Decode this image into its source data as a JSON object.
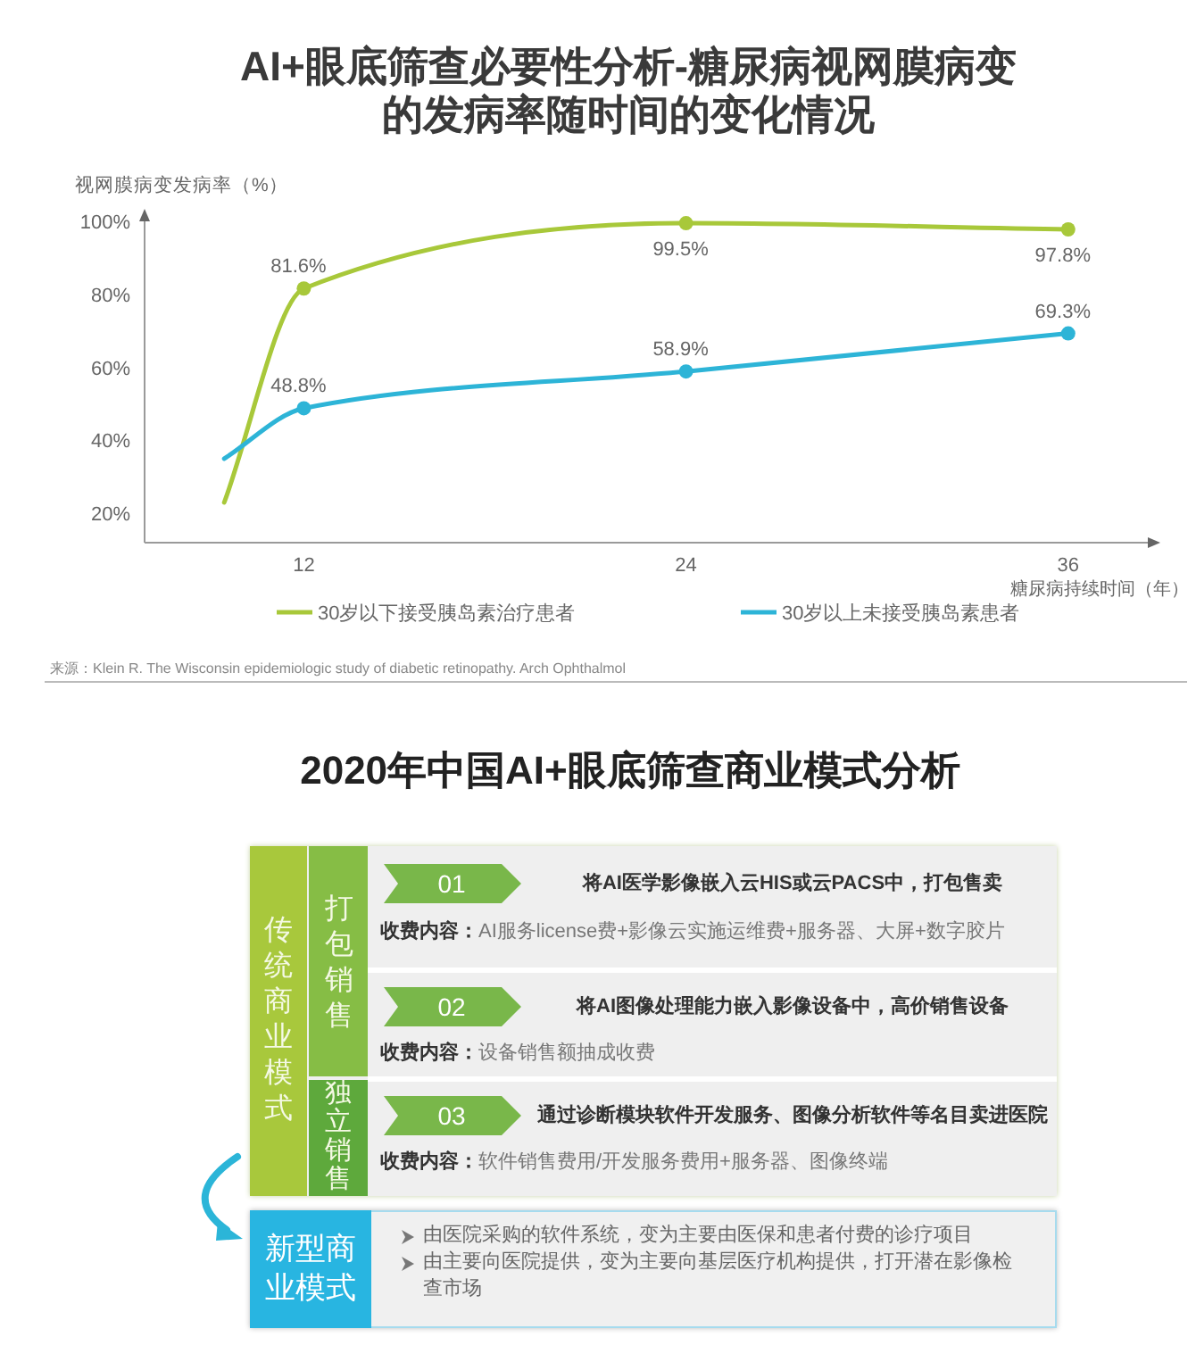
{
  "chart_data": [
    {
      "type": "line",
      "title": "AI+眼底筛查必要性分析-糖尿病视网膜病变的发病率随时间的变化情况",
      "xlabel": "糖尿病持续时间（年）",
      "ylabel": "视网膜病变发病率（%）",
      "xlim": [
        7,
        38.5
      ],
      "xticks": [
        12,
        24,
        36
      ],
      "ylim": [
        12,
        100
      ],
      "yticks": [
        {
          "value": 20,
          "label": "20%"
        },
        {
          "value": 40,
          "label": "40%"
        },
        {
          "value": 60,
          "label": "60%"
        },
        {
          "value": 80,
          "label": "80%"
        },
        {
          "value": 100,
          "label": "100%"
        }
      ],
      "series": [
        {
          "name": "30岁以下接受胰岛素治疗患者",
          "color": "#a8c83a",
          "x": [
            9.5,
            12,
            24,
            36
          ],
          "values": [
            23,
            81.6,
            99.5,
            97.8
          ],
          "value_labels": [
            null,
            "81.6%",
            "99.5%",
            "97.8%"
          ]
        },
        {
          "name": "30岁以上未接受胰岛素患者",
          "color": "#2db4d7",
          "x": [
            9.5,
            12,
            24,
            36
          ],
          "values": [
            35,
            48.8,
            58.9,
            69.3
          ],
          "value_labels": [
            null,
            "48.8%",
            "58.9%",
            "69.3%"
          ]
        }
      ],
      "marker": "circle",
      "legend": "bottom",
      "annotations": [
        "来源：Klein R. The Wisconsin epidemiologic study of diabetic retinopathy. Arch Ophthalmol"
      ]
    },
    {
      "type": "other",
      "title": "2020年中国AI+眼底筛查商业模式分析",
      "annotations": [
        "传统商业模式",
        "打包销售",
        "独立销售",
        "01",
        "将AI医学影像嵌入云HIS或云PACS中，打包售卖",
        "收费内容：",
        "AI服务license费+影像云实施运维费+服务器、大屏+数字胶片",
        "02",
        "将AI图像处理能力嵌入影像设备中，高价销售设备",
        "收费内容：",
        "设备销售额抽成收费",
        "03",
        "通过诊断模块软件开发服务、图像分析软件等名目卖进医院",
        "收费内容：",
        "软件销售费用/开发服务费用+服务器、图像终端",
        "新型商业模式",
        "由医院采购的软件系统，变为主要由医保和患者付费的诊疗项目",
        "由主要向医院提供，变为主要向基层医疗机构提供，打开潜在影像检查市场"
      ]
    }
  ]
}
